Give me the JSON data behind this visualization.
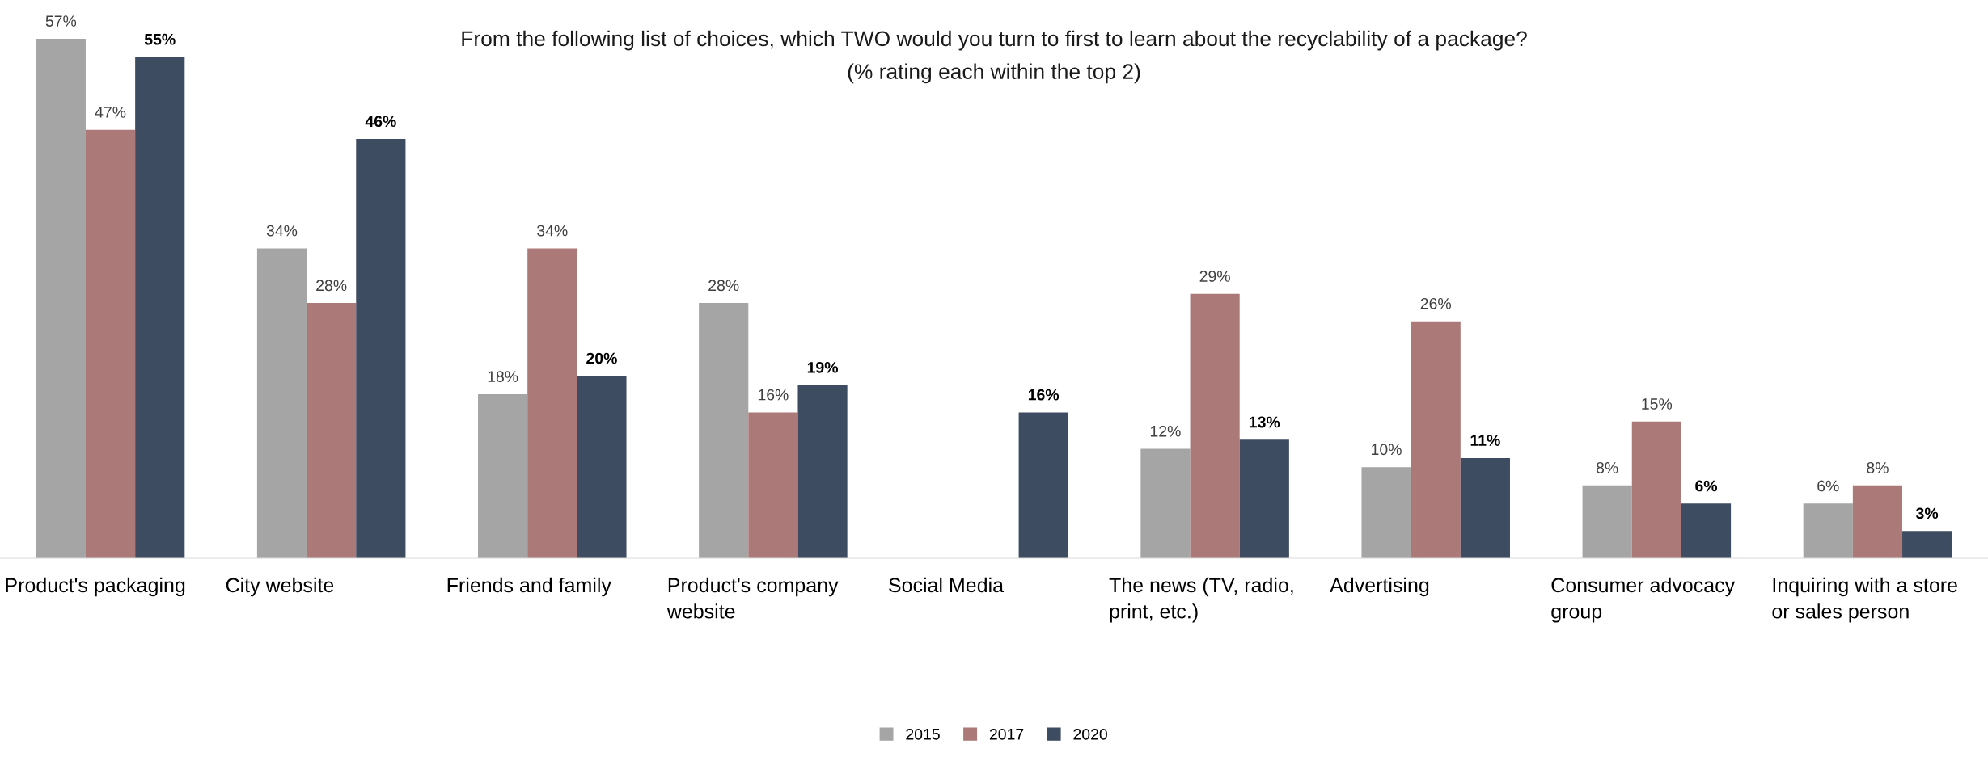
{
  "chart_data": {
    "type": "bar",
    "title": "From the following list of choices, which TWO would you turn to first to learn about the recyclability of a package?",
    "subtitle": "(% rating each within the top 2)",
    "categories": [
      "Product's packaging",
      "City website",
      "Friends and family",
      "Product's company\nwebsite",
      "Social Media",
      "The news (TV, radio,\nprint, etc.)",
      "Advertising",
      "Consumer advocacy\ngroup",
      "Inquiring with a store\nor sales person"
    ],
    "series": [
      {
        "name": "2015",
        "color": "#a5a5a5",
        "values": [
          57,
          34,
          18,
          28,
          null,
          12,
          10,
          8,
          6
        ],
        "value_labels": [
          "57%",
          "34%",
          "18%",
          "28%",
          null,
          "12%",
          "10%",
          "8%",
          "6%"
        ]
      },
      {
        "name": "2017",
        "color": "#ab7a78",
        "values": [
          47,
          28,
          34,
          16,
          null,
          29,
          26,
          15,
          8
        ],
        "value_labels": [
          "47%",
          "28%",
          "34%",
          "16%",
          null,
          "29%",
          "26%",
          "15%",
          "8%"
        ]
      },
      {
        "name": "2020",
        "color": "#3e4c61",
        "values": [
          55,
          46,
          20,
          19,
          16,
          13,
          11,
          6,
          3
        ],
        "value_labels": [
          "55%",
          "46%",
          "20%",
          "19%",
          "16%",
          "13%",
          "11%",
          "6%",
          "3%"
        ]
      }
    ],
    "legend": "bottom"
  }
}
